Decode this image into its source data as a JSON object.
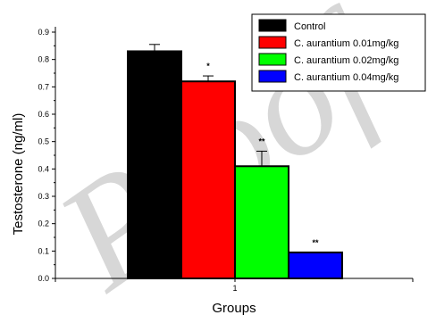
{
  "chart_data": {
    "type": "bar",
    "xlabel": "Groups",
    "ylabel": "Testosterone (ng/ml)",
    "ylim": [
      0,
      0.9
    ],
    "yticks": [
      "0.0",
      "0.1",
      "0.2",
      "0.3",
      "0.4",
      "0.5",
      "0.6",
      "0.7",
      "0.8",
      "0.9"
    ],
    "categories": [
      "1"
    ],
    "legend_position": "top-right",
    "series": [
      {
        "name": "Control",
        "values": [
          0.83
        ],
        "error": [
          0.025
        ],
        "color": "#000000",
        "significance": ""
      },
      {
        "name": "C. aurantium 0.01mg/kg",
        "values": [
          0.72
        ],
        "error": [
          0.02
        ],
        "color": "#ff0000",
        "significance": "*"
      },
      {
        "name": "C. aurantium 0.02mg/kg",
        "values": [
          0.41
        ],
        "error": [
          0.055
        ],
        "color": "#00ff00",
        "significance": "**"
      },
      {
        "name": "C. aurantium 0.04mg/kg",
        "values": [
          0.095
        ],
        "error": [
          0.0
        ],
        "color": "#0000ff",
        "significance": "**"
      }
    ]
  },
  "watermark_text": "Proof"
}
